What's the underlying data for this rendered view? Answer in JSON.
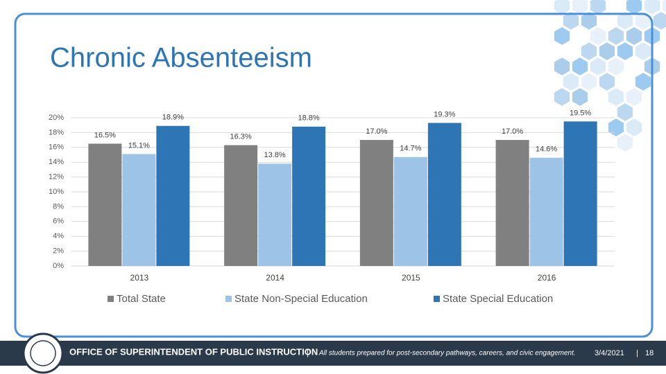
{
  "chart_data": {
    "type": "bar",
    "title": "Chronic Absenteeism",
    "categories": [
      "2013",
      "2014",
      "2015",
      "2016"
    ],
    "series": [
      {
        "name": "Total State",
        "color": "#808080",
        "values": [
          16.5,
          16.3,
          17.0,
          17.0
        ],
        "value_labels": [
          "16.5%",
          "16.3%",
          "17.0%",
          "17.0%"
        ]
      },
      {
        "name": "State Non-Special Education",
        "color": "#9dc3e6",
        "values": [
          15.1,
          13.8,
          14.7,
          14.6
        ],
        "value_labels": [
          "15.1%",
          "13.8%",
          "14.7%",
          "14.6%"
        ]
      },
      {
        "name": "State Special Education",
        "color": "#2e75b6",
        "values": [
          18.9,
          18.8,
          19.3,
          19.5
        ],
        "value_labels": [
          "18.9%",
          "18.8%",
          "19.3%",
          "19.5%"
        ]
      }
    ],
    "ylim": [
      0,
      20
    ],
    "yticks": [
      {
        "value": 0,
        "label": "0%"
      },
      {
        "value": 2,
        "label": "2%"
      },
      {
        "value": 4,
        "label": "4%"
      },
      {
        "value": 6,
        "label": "6%"
      },
      {
        "value": 8,
        "label": "8%"
      },
      {
        "value": 10,
        "label": "10%"
      },
      {
        "value": 12,
        "label": "12%"
      },
      {
        "value": 14,
        "label": "14%"
      },
      {
        "value": 16,
        "label": "16%"
      },
      {
        "value": 18,
        "label": "18%"
      },
      {
        "value": 20,
        "label": "20%"
      }
    ],
    "grid": true,
    "legend": "bottom"
  },
  "footer": {
    "office": "OFFICE OF SUPERINTENDENT OF PUBLIC INSTRUCTION",
    "separator": "|",
    "tagline": "All students prepared for post-secondary pathways, careers, and civic engagement.",
    "date": "3/4/2021",
    "divider": "|",
    "page": "18"
  }
}
